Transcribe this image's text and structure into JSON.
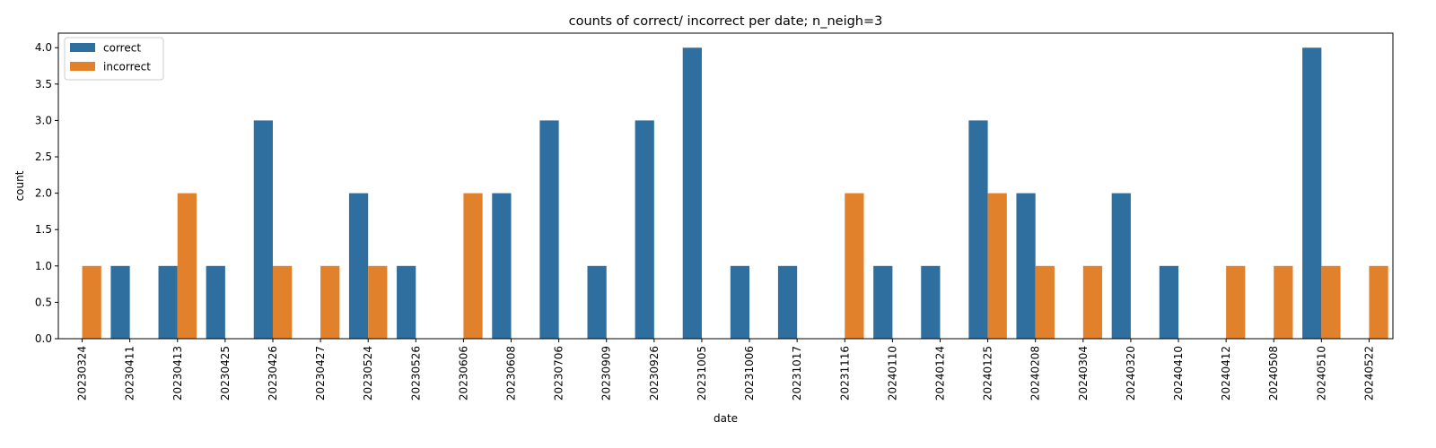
{
  "chart_data": {
    "type": "bar",
    "title": "counts of correct/ incorrect per date; n_neigh=3",
    "xlabel": "date",
    "ylabel": "count",
    "ylim": [
      0,
      4.2
    ],
    "yticks": [
      "0.0",
      "0.5",
      "1.0",
      "1.5",
      "2.0",
      "2.5",
      "3.0",
      "3.5",
      "4.0"
    ],
    "grid": false,
    "legend_position": "top-left",
    "categories": [
      "20230324",
      "20230411",
      "20230413",
      "20230425",
      "20230426",
      "20230427",
      "20230524",
      "20230526",
      "20230606",
      "20230608",
      "20230706",
      "20230909",
      "20230926",
      "20231005",
      "20231006",
      "20231017",
      "20231116",
      "20240110",
      "20240124",
      "20240125",
      "20240208",
      "20240304",
      "20240320",
      "20240410",
      "20240412",
      "20240508",
      "20240510",
      "20240522"
    ],
    "series": [
      {
        "name": "correct",
        "color": "#2f6f9f",
        "values": [
          0,
          1,
          1,
          1,
          3,
          0,
          2,
          1,
          0,
          2,
          3,
          1,
          3,
          4,
          1,
          1,
          0,
          1,
          1,
          3,
          2,
          0,
          2,
          1,
          0,
          0,
          4,
          0
        ]
      },
      {
        "name": "incorrect",
        "color": "#e1812c",
        "values": [
          1,
          0,
          2,
          0,
          1,
          1,
          1,
          0,
          2,
          0,
          0,
          0,
          0,
          0,
          0,
          0,
          2,
          0,
          0,
          2,
          1,
          1,
          0,
          0,
          1,
          1,
          1,
          1
        ]
      }
    ]
  }
}
